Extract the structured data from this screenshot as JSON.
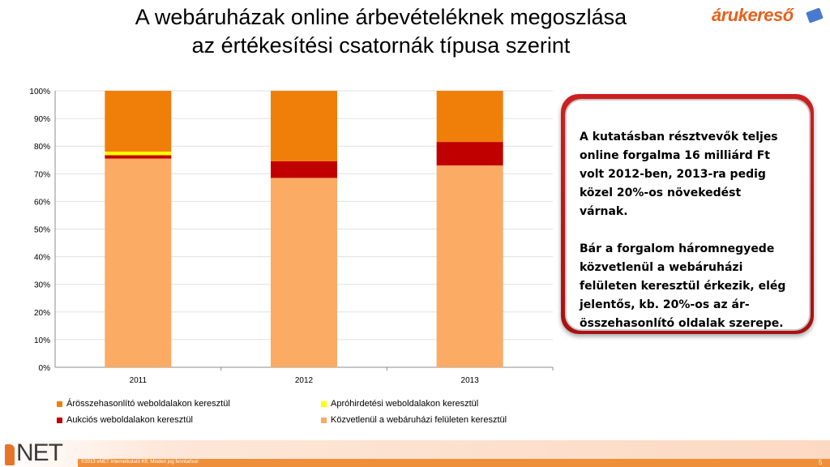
{
  "slide": {
    "title": "A webáruházak online árbevételéknek megoszlása az értékesítési csatornák típusa szerint",
    "logo_text": "árukereső",
    "footer_logo_text": "NET",
    "footer_copyright": "©2013 eNET Internetkutató Kft. Minden jog fenntartva!",
    "page_number": "5"
  },
  "note": {
    "paragraphs": [
      "A kutatásban résztvevők teljes online forgalma 16 milliárd Ft volt 2012-ben, 2013-ra pedig közel 20%-os növekedést várnak.",
      "Bár a forgalom háromnegyede közvetlenül a webáruházi felületen keresztül érkezik, elég jelentős, kb. 20%-os az ár-összehasonlító oldalak szerepe."
    ]
  },
  "colors": {
    "kozvetlen": "#fbab63",
    "aukcios": "#c00000",
    "aprohirdetesi": "#ffff00",
    "arosszehasonlito": "#f07f09",
    "note_border": "#c01818"
  },
  "chart_data": {
    "type": "bar",
    "stacked": true,
    "percent": true,
    "categories": [
      "2011",
      "2012",
      "2013"
    ],
    "ylim": [
      0,
      100
    ],
    "yticks": [
      "0%",
      "10%",
      "20%",
      "30%",
      "40%",
      "50%",
      "60%",
      "70%",
      "80%",
      "90%",
      "100%"
    ],
    "grid": true,
    "legend_position": "bottom",
    "series": [
      {
        "name": "Közvetlenül a webáruházi felületen keresztül",
        "key": "kozvetlen",
        "values": [
          75.5,
          68.5,
          73
        ]
      },
      {
        "name": "Aukciós weboldalakon keresztül",
        "key": "aukcios",
        "values": [
          1.2,
          6,
          8.5
        ]
      },
      {
        "name": "Apróhirdetési weboldalakon keresztül",
        "key": "aprohirdetesi",
        "values": [
          1.3,
          0,
          0
        ]
      },
      {
        "name": "Árösszehasonlító weboldalakon keresztül",
        "key": "arosszehasonlito",
        "values": [
          22,
          25.5,
          18.5
        ]
      }
    ]
  }
}
